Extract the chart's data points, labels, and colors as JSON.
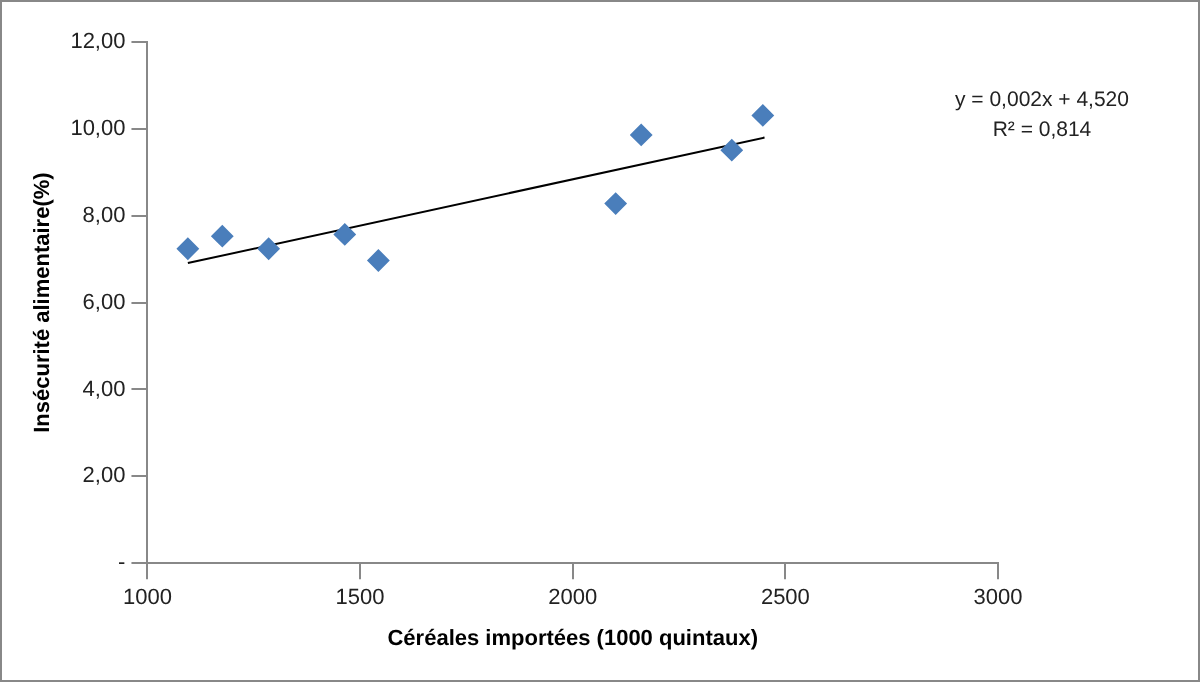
{
  "chart_data": {
    "type": "scatter",
    "xlabel": "Céréales importées (1000 quintaux)",
    "ylabel": "Insécurité alimentaire(%)",
    "xlim": [
      1000,
      3000
    ],
    "xticks": [
      1000,
      1500,
      2000,
      2500,
      3000
    ],
    "ylim": [
      0,
      12
    ],
    "yticks": [
      {
        "value": 0,
        "label": "-"
      },
      {
        "value": 2,
        "label": "2,00"
      },
      {
        "value": 4,
        "label": "4,00"
      },
      {
        "value": 6,
        "label": "6,00"
      },
      {
        "value": 8,
        "label": "8,00"
      },
      {
        "value": 10,
        "label": "10,00"
      },
      {
        "value": 12,
        "label": "12,00"
      }
    ],
    "grid": false,
    "legend": false,
    "marker": "diamond",
    "series": [
      {
        "color": "#4a7ebb",
        "x": [
          1095,
          1176,
          1285,
          1464,
          1543,
          2101,
          2161,
          2374,
          2447
        ],
        "values": [
          7.24,
          7.53,
          7.24,
          7.57,
          6.97,
          8.28,
          9.86,
          9.51,
          10.31
        ]
      },
      {
        "type": "line",
        "color": "#000000",
        "x": [
          1095,
          2451
        ],
        "values": [
          6.91,
          9.8
        ],
        "marker": "none"
      }
    ],
    "annotations": [
      "y = 0,002x + 4,520",
      "R² = 0,814"
    ]
  }
}
